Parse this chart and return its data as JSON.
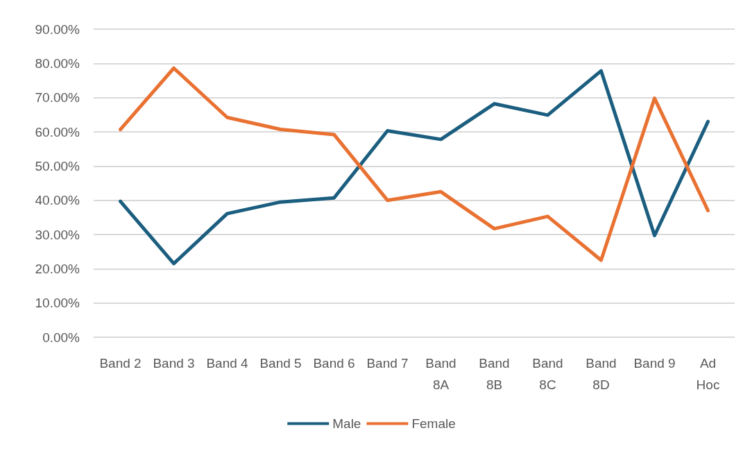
{
  "chart_data": {
    "type": "line",
    "categories": [
      "Band 2",
      "Band 3",
      "Band 4",
      "Band 5",
      "Band 6",
      "Band 7",
      "Band\n8A",
      "Band\n8B",
      "Band\n8C",
      "Band\n8D",
      "Band 9",
      "Ad\nHoc"
    ],
    "series": [
      {
        "name": "Male",
        "color": "#1b5e7f",
        "values": [
          39.7,
          21.5,
          36.1,
          39.5,
          40.7,
          60.3,
          57.8,
          68.2,
          64.9,
          77.8,
          29.7,
          63.0
        ]
      },
      {
        "name": "Female",
        "color": "#e97132",
        "values": [
          60.7,
          78.6,
          64.2,
          60.7,
          59.2,
          40.0,
          42.5,
          31.7,
          35.3,
          22.5,
          69.8,
          37.0
        ]
      }
    ],
    "ylim": [
      0,
      90
    ],
    "yticks": [
      {
        "value": 0,
        "label": "0.00%"
      },
      {
        "value": 10,
        "label": "10.00%"
      },
      {
        "value": 20,
        "label": "20.00%"
      },
      {
        "value": 30,
        "label": "30.00%"
      },
      {
        "value": 40,
        "label": "40.00%"
      },
      {
        "value": 50,
        "label": "50.00%"
      },
      {
        "value": 60,
        "label": "60.00%"
      },
      {
        "value": 70,
        "label": "70.00%"
      },
      {
        "value": 80,
        "label": "80.00%"
      },
      {
        "value": 90,
        "label": "90.00%"
      }
    ],
    "grid": "y",
    "legend": "bottom",
    "marker": "none",
    "line_style": "solid"
  }
}
